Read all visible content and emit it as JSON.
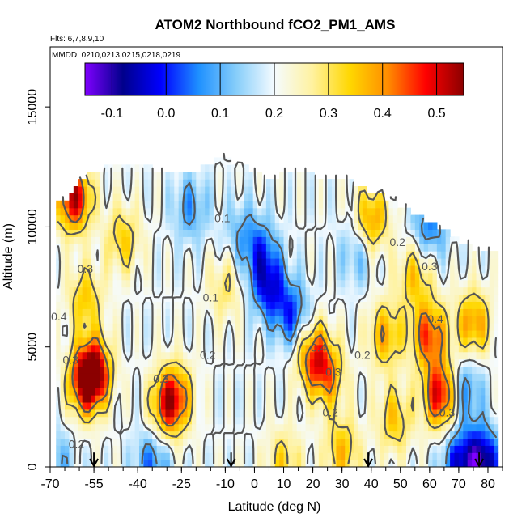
{
  "chart_data": {
    "type": "heatmap",
    "title": "ATOM2 Northbound fCO2_PM1_AMS",
    "flights_label": "Flts: 6,7,8,9,10",
    "dates_label": "MMDD: 0210,0213,0215,0218,0219",
    "xlabel": "Latitude (deg N)",
    "ylabel": "Altitude (m)",
    "xlim": [
      -70,
      85
    ],
    "ylim": [
      0,
      17500
    ],
    "x_ticks": [
      -70,
      -55,
      -40,
      -25,
      -10,
      0,
      10,
      20,
      30,
      40,
      50,
      60,
      70,
      80
    ],
    "x_tick_labels": [
      "-70",
      "-55",
      "-40",
      "-25",
      "-10",
      "0",
      "10",
      "20",
      "30",
      "40",
      "50",
      "60",
      "70",
      "80"
    ],
    "y_ticks": [
      0,
      5000,
      10000,
      15000
    ],
    "y_tick_labels": [
      "0",
      "5000",
      "10000",
      "15000"
    ],
    "colorbar": {
      "range": [
        -0.15,
        0.55
      ],
      "ticks": [
        -0.1,
        0.0,
        0.1,
        0.2,
        0.3,
        0.4,
        0.5
      ],
      "tick_labels": [
        "-0.1",
        "0.0",
        "0.1",
        "0.2",
        "0.3",
        "0.4",
        "0.5"
      ],
      "colors": [
        "#8000ff",
        "#00008b",
        "#0000ff",
        "#1e90ff",
        "#87cefa",
        "#f5fbff",
        "#fff2a0",
        "#ffd700",
        "#ff8c00",
        "#ff0000",
        "#8b0000"
      ]
    },
    "column_tops": [
      {
        "lat": -66,
        "alt": 11000
      },
      {
        "lat": -60,
        "alt": 12000
      },
      {
        "lat": -52,
        "alt": 12500
      },
      {
        "lat": -20,
        "alt": 12400
      },
      {
        "lat": -12,
        "alt": 12900
      },
      {
        "lat": 5,
        "alt": 12000
      },
      {
        "lat": 10,
        "alt": 12300
      },
      {
        "lat": 30,
        "alt": 12000
      },
      {
        "lat": 45,
        "alt": 11200
      },
      {
        "lat": 55,
        "alt": 10500
      },
      {
        "lat": 65,
        "alt": 9800
      },
      {
        "lat": 75,
        "alt": 9000
      },
      {
        "lat": 82,
        "alt": 9000
      }
    ],
    "hotspots": [
      {
        "lat": -55,
        "alt": 4000,
        "value": 0.5
      },
      {
        "lat": -58,
        "alt": 3500,
        "value": 0.45
      },
      {
        "lat": -30,
        "alt": 2500,
        "value": 0.4
      },
      {
        "lat": -27,
        "alt": 3000,
        "value": 0.38
      },
      {
        "lat": -62,
        "alt": 11200,
        "value": 0.52
      },
      {
        "lat": -58,
        "alt": 7000,
        "value": 0.35
      },
      {
        "lat": -45,
        "alt": 9500,
        "value": 0.34
      },
      {
        "lat": 20,
        "alt": 4700,
        "value": 0.43
      },
      {
        "lat": 25,
        "alt": 3800,
        "value": 0.38
      },
      {
        "lat": 40,
        "alt": 10300,
        "value": 0.4
      },
      {
        "lat": 45,
        "alt": 5500,
        "value": 0.38
      },
      {
        "lat": 60,
        "alt": 5500,
        "value": 0.45
      },
      {
        "lat": 64,
        "alt": 3000,
        "value": 0.52
      },
      {
        "lat": 55,
        "alt": 8000,
        "value": 0.35
      },
      {
        "lat": 48,
        "alt": 2000,
        "value": 0.35
      },
      {
        "lat": 30,
        "alt": 700,
        "value": 0.36
      },
      {
        "lat": 10,
        "alt": 200,
        "value": 0.33
      },
      {
        "lat": 75,
        "alt": 6000,
        "value": 0.4
      },
      {
        "lat": -10,
        "alt": 7500,
        "value": 0.3
      }
    ],
    "coldspots": [
      {
        "lat": 5,
        "alt": 7500,
        "value": 0.0
      },
      {
        "lat": 2,
        "alt": 9000,
        "value": 0.05
      },
      {
        "lat": 13,
        "alt": 6300,
        "value": 0.02
      },
      {
        "lat": 72,
        "alt": 3200,
        "value": 0.05
      },
      {
        "lat": 70,
        "alt": 200,
        "value": 0.0
      },
      {
        "lat": 78,
        "alt": 200,
        "value": -0.1
      },
      {
        "lat": -35,
        "alt": 200,
        "value": 0.05
      },
      {
        "lat": 60,
        "alt": 10000,
        "value": 0.05
      },
      {
        "lat": -22,
        "alt": 10800,
        "value": 0.08
      },
      {
        "lat": -5,
        "alt": 9800,
        "value": 0.12
      },
      {
        "lat": 35,
        "alt": 9000,
        "value": 0.1
      },
      {
        "lat": -68,
        "alt": 200,
        "value": 0.1
      }
    ],
    "background_value": 0.2,
    "contour_levels": [
      0.1,
      0.2,
      0.3,
      0.4
    ],
    "contour_labels": [
      {
        "text": "0.1",
        "lat": -11,
        "alt": 10200
      },
      {
        "text": "0.1",
        "lat": -15,
        "alt": 6900
      },
      {
        "text": "0.3",
        "lat": -58,
        "alt": 8100
      },
      {
        "text": "0.4",
        "lat": -67,
        "alt": 6100
      },
      {
        "text": "0.3",
        "lat": -63,
        "alt": 4300
      },
      {
        "text": "0.3",
        "lat": -32,
        "alt": 3500
      },
      {
        "text": "0.2",
        "lat": -16,
        "alt": 4500
      },
      {
        "text": "0.4",
        "lat": 22,
        "alt": 4800
      },
      {
        "text": "0.3",
        "lat": 27,
        "alt": 3800
      },
      {
        "text": "0.2",
        "lat": 37,
        "alt": 4500
      },
      {
        "text": "0.2",
        "lat": 26,
        "alt": 2100
      },
      {
        "text": "0.2",
        "lat": 49,
        "alt": 9200
      },
      {
        "text": "0.3",
        "lat": 60,
        "alt": 8200
      },
      {
        "text": "0.4",
        "lat": 62,
        "alt": 6000
      },
      {
        "text": "0.3",
        "lat": 66,
        "alt": 2100
      },
      {
        "text": "0.2",
        "lat": -61,
        "alt": 800
      }
    ],
    "flight_arrows": [
      -55,
      -8,
      39,
      77
    ]
  }
}
